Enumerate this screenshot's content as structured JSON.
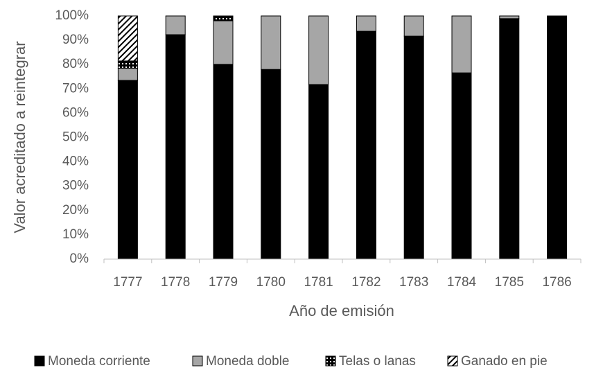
{
  "chart_data": {
    "type": "stacked_bar",
    "x_label": "Año de emisión",
    "y_label": "Valor acreditado a reintegrar",
    "categories": [
      "1777",
      "1778",
      "1779",
      "1780",
      "1781",
      "1782",
      "1783",
      "1784",
      "1785",
      "1786"
    ],
    "series": [
      {
        "name": "Moneda corriente",
        "color": "#000000",
        "pattern": "solid",
        "values": [
          73.5,
          92.3,
          80.1,
          78,
          71.8,
          93.7,
          91.7,
          76.6,
          98.9,
          100
        ]
      },
      {
        "name": "Moneda doble",
        "color": "#a6a6a6",
        "pattern": "solid",
        "values": [
          5,
          7.7,
          17.9,
          22,
          28.2,
          6.3,
          8.3,
          23.4,
          1.1,
          0
        ]
      },
      {
        "name": "Telas o lanas",
        "color": "#000000",
        "pattern": "dots",
        "values": [
          3,
          0,
          2,
          0,
          0,
          0,
          0,
          0,
          0,
          0
        ]
      },
      {
        "name": "Ganado en pie",
        "color": "#000000",
        "pattern": "hatch",
        "values": [
          18.5,
          0,
          0,
          0,
          0,
          0,
          0,
          0,
          0,
          0
        ]
      }
    ],
    "ylim": [
      0,
      100
    ],
    "yticks": [
      {
        "value": 0,
        "label": "0%"
      },
      {
        "value": 10,
        "label": "10%"
      },
      {
        "value": 20,
        "label": "20%"
      },
      {
        "value": 30,
        "label": "30%"
      },
      {
        "value": 40,
        "label": "40%"
      },
      {
        "value": 50,
        "label": "50%"
      },
      {
        "value": 60,
        "label": "60%"
      },
      {
        "value": 70,
        "label": "70%"
      },
      {
        "value": 80,
        "label": "80%"
      },
      {
        "value": 90,
        "label": "90%"
      },
      {
        "value": 100,
        "label": "100%"
      }
    ],
    "grid": false,
    "legend": "bottom"
  }
}
